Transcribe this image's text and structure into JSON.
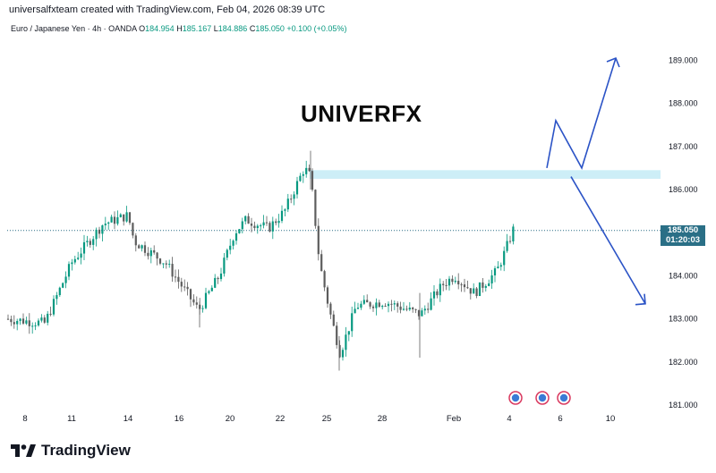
{
  "header": {
    "caption": "universalfxteam created with TradingView.com, Feb 04, 2026 08:39 UTC"
  },
  "legend": {
    "symbol": "Euro / Japanese Yen · 4h · OANDA",
    "open_label": "O",
    "open": "184.954",
    "high_label": "H",
    "high": "185.167",
    "low_label": "L",
    "low": "184.886",
    "close_label": "C",
    "close": "185.050",
    "change": "+0.100 (+0.05%)"
  },
  "watermark": "UNIVERFX",
  "price_badge": {
    "price": "185.050",
    "countdown": "01:20:03"
  },
  "footer": {
    "logo_text": "TradingView"
  },
  "colors": {
    "up": "#089981",
    "down": "#5d5d5d",
    "arrow": "#2b53c6",
    "zone": "#cdeef7",
    "price_line": "#2a6f86"
  },
  "chart_data": {
    "type": "candlestick",
    "symbol": "EURJPY",
    "timeframe": "4h",
    "y_ticks": [
      "189.000",
      "188.000",
      "187.000",
      "186.000",
      "184.000",
      "183.000",
      "182.000",
      "181.000"
    ],
    "x_ticks": [
      "8",
      "11",
      "14",
      "16",
      "20",
      "22",
      "25",
      "28",
      "Feb",
      "4",
      "6",
      "10"
    ],
    "current_price": 185.05,
    "resistance_zone": [
      186.25,
      186.45
    ],
    "projected_up_path": [
      [
        186.5
      ],
      [
        187.6
      ],
      [
        186.5
      ],
      [
        189.05
      ]
    ],
    "projected_down_path": [
      [
        186.3
      ],
      [
        183.35
      ]
    ],
    "event_icons": 3
  }
}
